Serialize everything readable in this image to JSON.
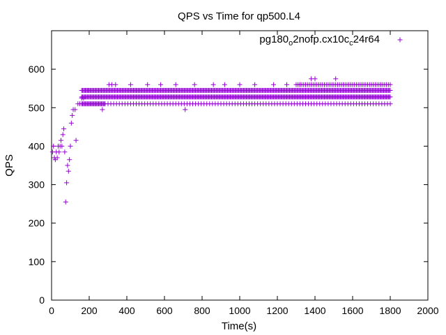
{
  "chart_data": {
    "type": "scatter",
    "title": "QPS vs Time for qp500.L4",
    "xlabel": "Time(s)",
    "ylabel": "QPS",
    "xlim": [
      0,
      2000
    ],
    "ylim": [
      0,
      700
    ],
    "xticks": [
      0,
      200,
      400,
      600,
      800,
      1000,
      1200,
      1400,
      1600,
      1800,
      2000
    ],
    "yticks": [
      0,
      100,
      200,
      300,
      400,
      500,
      600
    ],
    "grid": false,
    "legend_position": "top-right",
    "marker": "plus",
    "series": [
      {
        "name": "pg180_o2nofp.cx10c_c24r64",
        "legend": {
          "base": "pg180",
          "sub1": "o",
          "mid": "2nofp.cx10c",
          "sub2": "c",
          "end": "24r64"
        },
        "color": "#9400d3",
        "ramp_points": [
          [
            5,
            385
          ],
          [
            10,
            400
          ],
          [
            15,
            370
          ],
          [
            20,
            365
          ],
          [
            25,
            385
          ],
          [
            30,
            370
          ],
          [
            35,
            400
          ],
          [
            40,
            385
          ],
          [
            45,
            400
          ],
          [
            50,
            415
          ],
          [
            55,
            400
          ],
          [
            60,
            430
          ],
          [
            65,
            445
          ],
          [
            70,
            385
          ],
          [
            75,
            255
          ],
          [
            80,
            305
          ],
          [
            85,
            350
          ],
          [
            90,
            335
          ],
          [
            95,
            365
          ],
          [
            100,
            400
          ],
          [
            105,
            460
          ],
          [
            110,
            480
          ],
          [
            115,
            495
          ],
          [
            125,
            495
          ],
          [
            130,
            415
          ],
          [
            140,
            510
          ],
          [
            150,
            510
          ],
          [
            160,
            525
          ],
          [
            170,
            525
          ],
          [
            180,
            545
          ],
          [
            195,
            545
          ],
          [
            270,
            495
          ],
          [
            710,
            495
          ],
          [
            1380,
            575
          ],
          [
            1400,
            575
          ],
          [
            1510,
            575
          ],
          [
            305,
            560
          ],
          [
            320,
            560
          ],
          [
            340,
            560
          ],
          [
            420,
            560
          ],
          [
            510,
            560
          ],
          [
            580,
            560
          ],
          [
            660,
            560
          ],
          [
            760,
            560
          ],
          [
            860,
            560
          ],
          [
            920,
            560
          ],
          [
            1000,
            560
          ],
          [
            1080,
            560
          ],
          [
            1180,
            560
          ],
          [
            1250,
            560
          ],
          [
            1320,
            560
          ]
        ],
        "steady": {
          "x_start": 160,
          "x_end": 1800,
          "levels": [
            510,
            528,
            545
          ],
          "sparse_level": 560
        }
      }
    ]
  }
}
